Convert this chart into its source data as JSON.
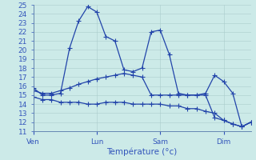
{
  "background_color": "#cceae8",
  "grid_color": "#aacccc",
  "line_color": "#2244aa",
  "xlabel": "Température (°c)",
  "xtick_labels": [
    "Ven",
    "Lun",
    "Sam",
    "Dim"
  ],
  "xtick_positions": [
    0,
    7,
    14,
    21
  ],
  "ylim": [
    11,
    25
  ],
  "xlim": [
    0,
    24
  ],
  "yticks": [
    11,
    12,
    13,
    14,
    15,
    16,
    17,
    18,
    19,
    20,
    21,
    22,
    23,
    24,
    25
  ],
  "line1_x": [
    0,
    1,
    2,
    3,
    4,
    5,
    6,
    7,
    8,
    9,
    10,
    11,
    12,
    13,
    14,
    15,
    16,
    17,
    18,
    19,
    20,
    21,
    22,
    23,
    24
  ],
  "line1_y": [
    15.8,
    15.0,
    15.0,
    15.2,
    20.2,
    23.2,
    24.8,
    24.2,
    21.5,
    21.0,
    17.8,
    17.6,
    18.0,
    22.0,
    22.2,
    19.5,
    15.2,
    15.0,
    15.0,
    15.2,
    17.2,
    16.5,
    15.2,
    11.5,
    12.0
  ],
  "line2_x": [
    0,
    1,
    2,
    3,
    4,
    5,
    6,
    7,
    8,
    9,
    10,
    11,
    12,
    13,
    14,
    15,
    16,
    17,
    18,
    19,
    20,
    21,
    22,
    23,
    24
  ],
  "line2_y": [
    15.5,
    15.2,
    15.2,
    15.5,
    15.8,
    16.2,
    16.5,
    16.8,
    17.0,
    17.2,
    17.4,
    17.2,
    17.0,
    15.0,
    15.0,
    15.0,
    15.0,
    15.0,
    15.0,
    15.0,
    12.5,
    12.2,
    11.8,
    11.5,
    12.0
  ],
  "line3_x": [
    0,
    1,
    2,
    3,
    4,
    5,
    6,
    7,
    8,
    9,
    10,
    11,
    12,
    13,
    14,
    15,
    16,
    17,
    18,
    19,
    20,
    21,
    22,
    23,
    24
  ],
  "line3_y": [
    14.8,
    14.5,
    14.5,
    14.2,
    14.2,
    14.2,
    14.0,
    14.0,
    14.2,
    14.2,
    14.2,
    14.0,
    14.0,
    14.0,
    14.0,
    13.8,
    13.8,
    13.5,
    13.5,
    13.2,
    13.0,
    12.2,
    11.8,
    11.5,
    12.0
  ],
  "marker": "+",
  "marker_size": 4,
  "linewidth": 0.9
}
